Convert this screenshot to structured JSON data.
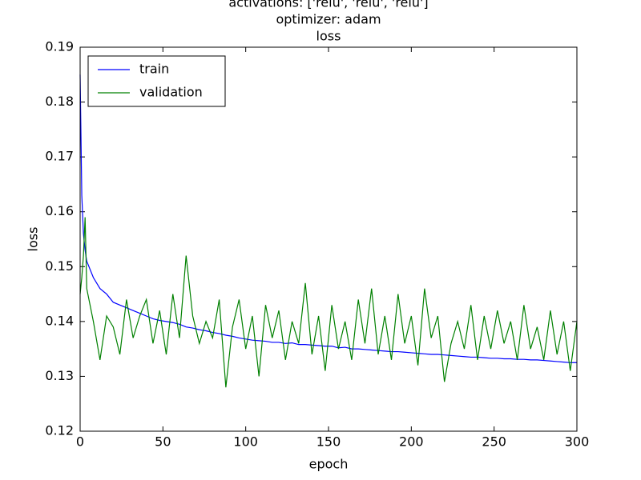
{
  "chart_data": {
    "type": "line",
    "title": [
      "activations: ['relu', 'relu', 'relu']",
      "optimizer: adam",
      "loss"
    ],
    "xlabel": "epoch",
    "ylabel": "loss",
    "x": [
      0,
      1,
      2,
      3,
      4,
      8,
      12,
      16,
      20,
      24,
      28,
      32,
      36,
      40,
      44,
      48,
      52,
      56,
      60,
      64,
      68,
      72,
      76,
      80,
      84,
      88,
      92,
      96,
      100,
      104,
      108,
      112,
      116,
      120,
      124,
      128,
      132,
      136,
      140,
      144,
      148,
      152,
      156,
      160,
      164,
      168,
      172,
      176,
      180,
      184,
      188,
      192,
      196,
      200,
      204,
      208,
      212,
      216,
      220,
      224,
      228,
      232,
      236,
      240,
      244,
      248,
      252,
      256,
      260,
      264,
      268,
      272,
      276,
      280,
      284,
      288,
      292,
      296,
      300
    ],
    "series": [
      {
        "name": "train",
        "color": "#0000ff",
        "values": [
          0.185,
          0.163,
          0.156,
          0.153,
          0.151,
          0.148,
          0.146,
          0.145,
          0.1435,
          0.143,
          0.1425,
          0.142,
          0.1415,
          0.141,
          0.1405,
          0.1402,
          0.14,
          0.1398,
          0.1395,
          0.139,
          0.1388,
          0.1385,
          0.1383,
          0.138,
          0.1378,
          0.1375,
          0.1373,
          0.137,
          0.1368,
          0.1366,
          0.1365,
          0.1364,
          0.1362,
          0.1362,
          0.136,
          0.1361,
          0.1358,
          0.1358,
          0.1357,
          0.1356,
          0.1355,
          0.1355,
          0.1352,
          0.1353,
          0.135,
          0.135,
          0.1349,
          0.1348,
          0.1347,
          0.1346,
          0.1345,
          0.1345,
          0.1344,
          0.1343,
          0.1342,
          0.1341,
          0.134,
          0.134,
          0.1339,
          0.1338,
          0.1337,
          0.1336,
          0.1335,
          0.1335,
          0.1334,
          0.1333,
          0.1333,
          0.1332,
          0.1332,
          0.1331,
          0.1331,
          0.133,
          0.133,
          0.1329,
          0.1328,
          0.1327,
          0.1326,
          0.1325,
          0.1325
        ]
      },
      {
        "name": "validation",
        "color": "#008000",
        "values": [
          0.145,
          0.148,
          0.152,
          0.159,
          0.146,
          0.14,
          0.133,
          0.141,
          0.139,
          0.134,
          0.144,
          0.137,
          0.141,
          0.144,
          0.136,
          0.142,
          0.134,
          0.145,
          0.137,
          0.152,
          0.141,
          0.136,
          0.14,
          0.137,
          0.144,
          0.128,
          0.139,
          0.144,
          0.135,
          0.141,
          0.13,
          0.143,
          0.137,
          0.142,
          0.133,
          0.14,
          0.136,
          0.147,
          0.134,
          0.141,
          0.131,
          0.143,
          0.135,
          0.14,
          0.133,
          0.144,
          0.136,
          0.146,
          0.134,
          0.141,
          0.133,
          0.145,
          0.136,
          0.141,
          0.132,
          0.146,
          0.137,
          0.141,
          0.129,
          0.136,
          0.14,
          0.135,
          0.143,
          0.133,
          0.141,
          0.135,
          0.142,
          0.136,
          0.14,
          0.133,
          0.143,
          0.135,
          0.139,
          0.133,
          0.142,
          0.134,
          0.14,
          0.131,
          0.14
        ]
      }
    ],
    "xlim": [
      0,
      300
    ],
    "xticks": [
      0,
      50,
      100,
      150,
      200,
      250,
      300
    ],
    "ylim": [
      0.12,
      0.19
    ],
    "yticks": [
      0.12,
      0.13,
      0.14,
      0.15,
      0.16,
      0.17,
      0.18,
      0.19
    ],
    "legend": "upper left"
  }
}
